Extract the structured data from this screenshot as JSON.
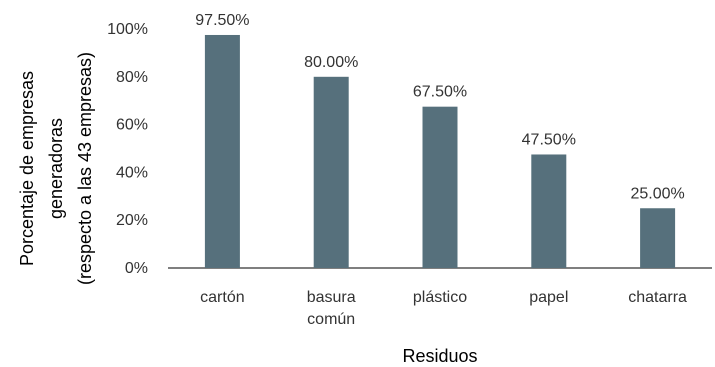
{
  "chart_data": {
    "type": "bar",
    "categories": [
      [
        "cartón"
      ],
      [
        "basura",
        "común"
      ],
      [
        "plástico"
      ],
      [
        "papel"
      ],
      [
        "chatarra"
      ]
    ],
    "values": [
      97.5,
      80.0,
      67.5,
      47.5,
      25.0
    ],
    "data_labels": [
      "97.50%",
      "80.00%",
      "67.50%",
      "47.50%",
      "25.00%"
    ],
    "y_ticks": [
      "0%",
      "20%",
      "40%",
      "60%",
      "80%",
      "100%"
    ],
    "ylim": [
      0,
      100
    ],
    "xlabel": "Residuos",
    "ylabel": [
      "Porcentaje de empresas",
      "generadoras",
      "(respecto a las 43 empresas)"
    ],
    "bar_color": "#56707c",
    "axis_color": "#333333",
    "grid": false,
    "legend": false
  }
}
